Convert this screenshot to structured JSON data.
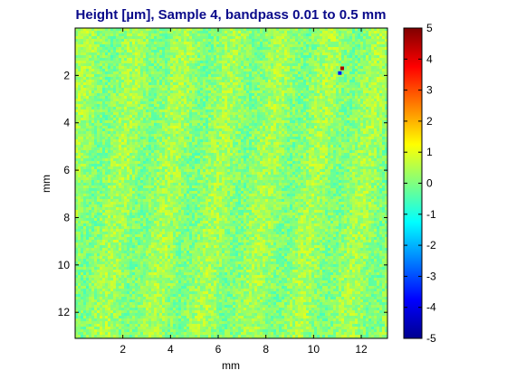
{
  "chart_data": {
    "type": "heatmap",
    "title": "Height [µm],  Sample 4,  bandpass 0.01 to 0.5 mm",
    "xlabel": "mm",
    "ylabel": "mm",
    "x_ticks": [
      2,
      4,
      6,
      8,
      10,
      12
    ],
    "y_ticks": [
      2,
      4,
      6,
      8,
      10,
      12
    ],
    "xlim": [
      0,
      13.1
    ],
    "ylim": [
      0,
      13.1
    ],
    "y_reversed": true,
    "colorbar": {
      "colormap": "jet",
      "ticks": [
        5,
        4,
        3,
        2,
        1,
        0,
        -1,
        -2,
        -3,
        -4,
        -5
      ],
      "range": [
        -5,
        5
      ],
      "label": ""
    },
    "field": {
      "description_values": "mostly between -1 and 1 µm",
      "mean": 0.2,
      "spread": 0.55,
      "features": [
        {
          "x": 11.2,
          "y": 1.7,
          "value": 4.6
        },
        {
          "x": 11.1,
          "y": 1.9,
          "value": -3.5
        }
      ]
    }
  }
}
